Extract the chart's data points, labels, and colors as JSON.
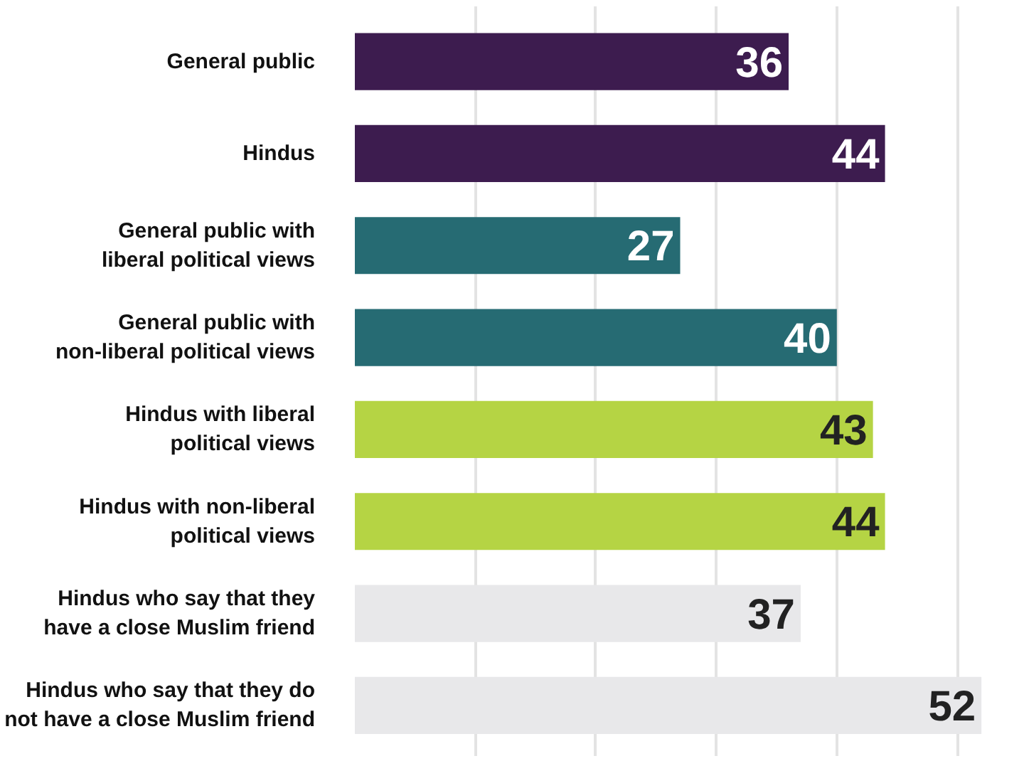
{
  "chart_data": {
    "type": "bar",
    "orientation": "horizontal",
    "categories": [
      "General public",
      "Hindus",
      "General public with\nliberal political views",
      "General public with\nnon-liberal political views",
      "Hindus with liberal\npolitical views",
      "Hindus with non-liberal\npolitical views",
      "Hindus who say that they\nhave a close Muslim friend",
      "Hindus who say that they do\nnot have a close Muslim friend"
    ],
    "values": [
      36,
      44,
      27,
      40,
      43,
      44,
      37,
      52
    ],
    "colors": [
      "#3d1c4f",
      "#3d1c4f",
      "#266b73",
      "#266b73",
      "#b5d444",
      "#b5d444",
      "#e8e8ea",
      "#e8e8ea"
    ],
    "grid": "x",
    "tick_labels": "y",
    "data_labels": true
  }
}
